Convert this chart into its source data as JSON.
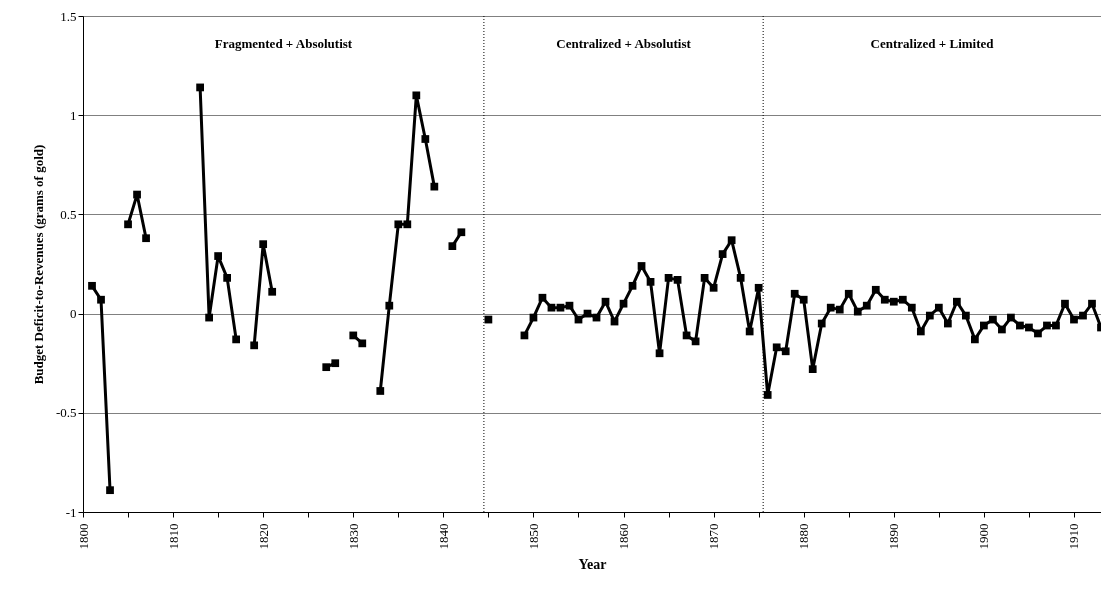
{
  "chart_data": {
    "type": "line",
    "xlabel": "Year",
    "ylabel": "Budget Deficit-to-Revenues (grams of gold)",
    "x": [
      1801,
      1802,
      1803,
      1804,
      1805,
      1806,
      1807,
      1808,
      1809,
      1810,
      1811,
      1812,
      1813,
      1814,
      1815,
      1816,
      1817,
      1818,
      1819,
      1820,
      1821,
      1822,
      1823,
      1824,
      1825,
      1826,
      1827,
      1828,
      1829,
      1830,
      1831,
      1832,
      1833,
      1834,
      1835,
      1836,
      1837,
      1838,
      1839,
      1840,
      1841,
      1842,
      1843,
      1844,
      1845,
      1846,
      1847,
      1848,
      1849,
      1850,
      1851,
      1852,
      1853,
      1854,
      1855,
      1856,
      1857,
      1858,
      1859,
      1860,
      1861,
      1862,
      1863,
      1864,
      1865,
      1866,
      1867,
      1868,
      1869,
      1870,
      1871,
      1872,
      1873,
      1874,
      1875,
      1876,
      1877,
      1878,
      1879,
      1880,
      1881,
      1882,
      1883,
      1884,
      1885,
      1886,
      1887,
      1888,
      1889,
      1890,
      1891,
      1892,
      1893,
      1894,
      1895,
      1896,
      1897,
      1898,
      1899,
      1900,
      1901,
      1902,
      1903,
      1904,
      1905,
      1906,
      1907,
      1908,
      1909,
      1910,
      1911,
      1912,
      1913
    ],
    "series": [
      {
        "color": "#000000",
        "values": [
          0.14,
          0.07,
          -0.89,
          null,
          0.45,
          0.6,
          0.38,
          null,
          null,
          null,
          null,
          null,
          1.14,
          -0.02,
          0.29,
          0.18,
          -0.13,
          null,
          -0.16,
          0.35,
          0.11,
          null,
          null,
          null,
          null,
          null,
          -0.27,
          -0.25,
          null,
          -0.11,
          -0.15,
          null,
          -0.39,
          0.04,
          0.45,
          0.45,
          1.1,
          0.88,
          0.64,
          null,
          0.34,
          0.41,
          null,
          null,
          -0.03,
          null,
          null,
          null,
          -0.11,
          -0.02,
          0.08,
          0.03,
          0.03,
          0.04,
          -0.03,
          0.0,
          -0.02,
          0.06,
          -0.04,
          0.05,
          0.14,
          0.24,
          0.16,
          -0.2,
          0.18,
          0.17,
          -0.11,
          -0.14,
          0.18,
          0.13,
          0.3,
          0.37,
          0.18,
          -0.09,
          0.13,
          -0.41,
          -0.17,
          -0.19,
          0.1,
          0.07,
          -0.28,
          -0.05,
          0.03,
          0.02,
          0.1,
          0.01,
          0.04,
          0.12,
          0.07,
          0.06,
          0.07,
          0.03,
          -0.09,
          -0.01,
          0.03,
          -0.05,
          0.06,
          -0.01,
          -0.13,
          -0.06,
          -0.03,
          -0.08,
          -0.02,
          -0.06,
          -0.07,
          -0.1,
          -0.06,
          -0.06,
          0.05,
          -0.03,
          -0.01,
          0.05,
          -0.07
        ]
      }
    ],
    "marker": "square",
    "line_style": "solid",
    "grid": "y",
    "xlim": [
      1800,
      1913
    ],
    "xticks": [
      1800,
      {
        "value": 1805,
        "label": null
      },
      1810,
      {
        "value": 1815,
        "label": null
      },
      1820,
      {
        "value": 1825,
        "label": null
      },
      1830,
      {
        "value": 1835,
        "label": null
      },
      1840,
      {
        "value": 1845,
        "label": null
      },
      1850,
      {
        "value": 1855,
        "label": null
      },
      1860,
      {
        "value": 1865,
        "label": null
      },
      1870,
      {
        "value": 1875,
        "label": null
      },
      1880,
      {
        "value": 1885,
        "label": null
      },
      1890,
      {
        "value": 1895,
        "label": null
      },
      1900,
      {
        "value": 1905,
        "label": null
      },
      1910
    ],
    "ylim": [
      -1,
      1.5
    ],
    "yticks": [
      -1,
      -0.5,
      0,
      0.5,
      1,
      1.5
    ],
    "ref_lines": [
      {
        "axis": "x",
        "value": 1844.5,
        "line_style": "dotted",
        "color": "#000000"
      },
      {
        "axis": "x",
        "value": 1875.5,
        "line_style": "dotted",
        "color": "#000000"
      }
    ],
    "annotations": [
      "Fragmented + Absolutist",
      "Centralized + Absolutist",
      "Centralized + Limited"
    ]
  }
}
